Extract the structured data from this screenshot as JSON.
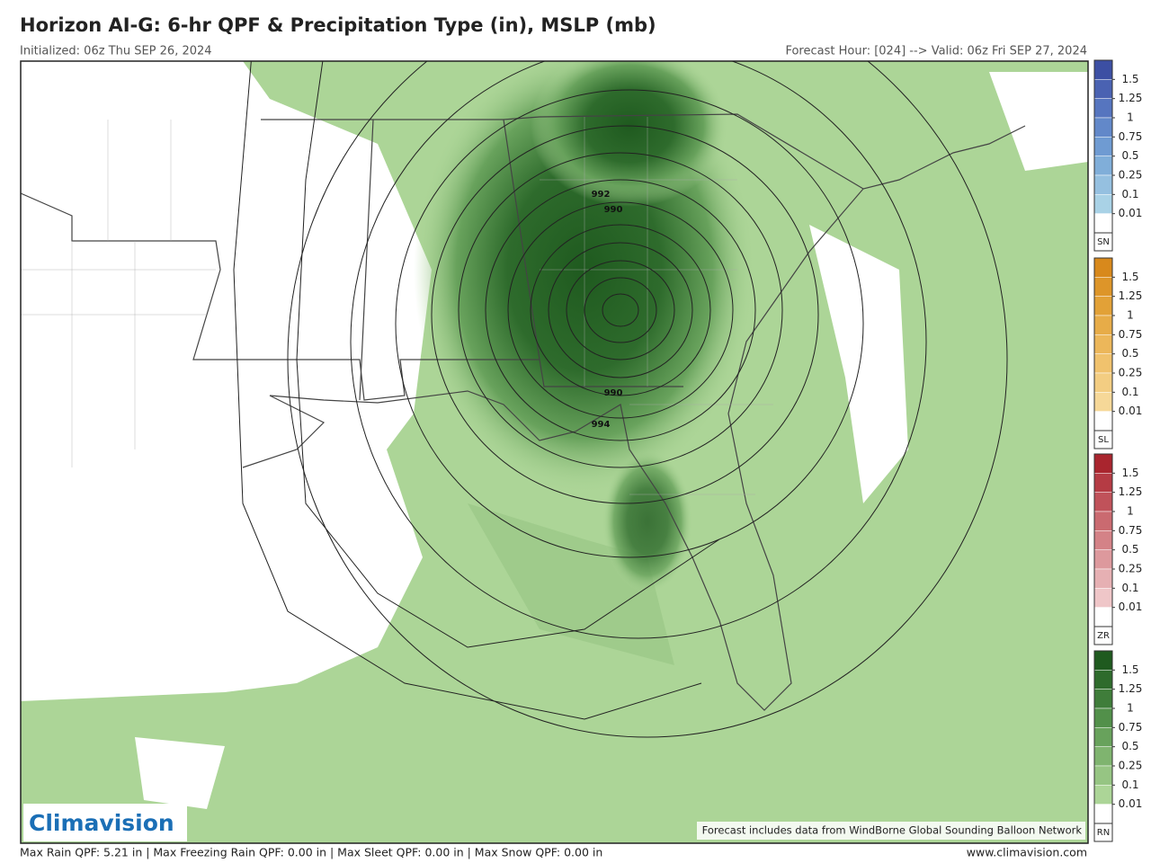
{
  "header": {
    "title": "Horizon AI-G: 6-hr QPF & Precipitation Type (in), MSLP (mb)",
    "initialized": "Initialized: 06z Thu SEP 26, 2024",
    "valid": "Forecast Hour: [024] --> Valid: 06z Fri SEP 27, 2024"
  },
  "map": {
    "isobar_labels": [
      "992",
      "990",
      "990",
      "994"
    ],
    "logo": "Climavision",
    "credit": "Forecast includes data from WindBorne Global Sounding Balloon Network"
  },
  "colorbars": [
    {
      "code": "SN",
      "ticks": [
        1.5,
        1.25,
        1,
        0.75,
        0.5,
        0.25,
        0.1,
        0.01
      ],
      "colors": [
        "#3c4fa3",
        "#4a62b2",
        "#5675bf",
        "#6288c9",
        "#6f9bd2",
        "#80aed9",
        "#95c0e0",
        "#a9d2e6",
        "#ffffff"
      ]
    },
    {
      "code": "SL",
      "ticks": [
        1.5,
        1.25,
        1,
        0.75,
        0.5,
        0.25,
        0.1,
        0.01
      ],
      "colors": [
        "#d8891c",
        "#dd9529",
        "#e2a137",
        "#e7ac48",
        "#ecb75a",
        "#f0c26d",
        "#f3cd82",
        "#f6d898",
        "#ffffff"
      ]
    },
    {
      "code": "ZR",
      "ticks": [
        1.5,
        1.25,
        1,
        0.75,
        0.5,
        0.25,
        0.1,
        0.01
      ],
      "colors": [
        "#a9252e",
        "#b53b44",
        "#c0525a",
        "#ca6a70",
        "#d48287",
        "#dd999d",
        "#e6b0b3",
        "#efc6c8",
        "#ffffff"
      ]
    },
    {
      "code": "RN",
      "ticks": [
        1.5,
        1.25,
        1,
        0.75,
        0.5,
        0.25,
        0.1,
        0.01
      ],
      "colors": [
        "#1f5a1f",
        "#2e6b2c",
        "#3f7d3a",
        "#52904a",
        "#68a25c",
        "#7fb46f",
        "#96c583",
        "#acd597",
        "#ffffff"
      ]
    }
  ],
  "footer": {
    "stats": "Max Rain QPF: 5.21 in | Max Freezing Rain QPF: 0.00 in | Max Sleet QPF: 0.00 in | Max Snow QPF: 0.00 in",
    "url": "www.climavision.com"
  }
}
